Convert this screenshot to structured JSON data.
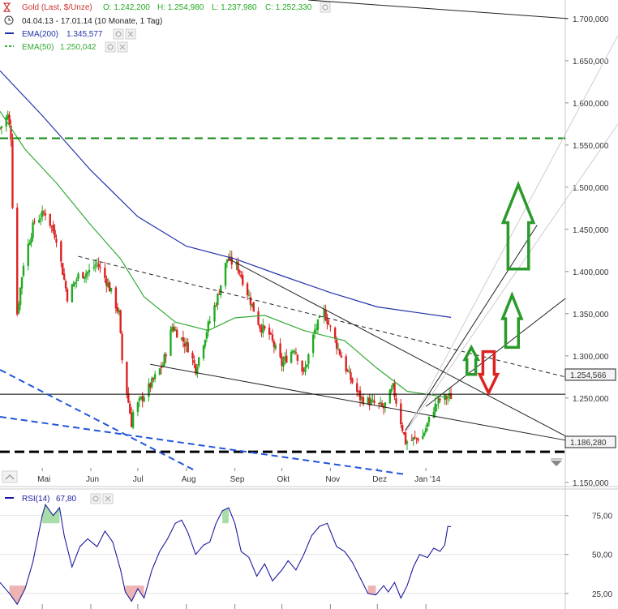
{
  "legend": {
    "instrument": "Gold (Last, $/Unze)",
    "ohlc": {
      "open": "O: 1.242,200",
      "high": "H: 1.254,980",
      "low": "L: 1.237,980",
      "close": "C: 1.252,330"
    },
    "range": "04.04.13 - 17.01.14 (10 Monate, 1 Tag)",
    "ema200": {
      "label": "EMA(200)",
      "value": "1.345,577"
    },
    "ema50": {
      "label": "EMA(50)",
      "value": "1.250,042"
    }
  },
  "rsi": {
    "label": "RSI(14)",
    "value": "67,80"
  },
  "price_tags": {
    "current": "1.254,566",
    "support": "1.186,280"
  },
  "colors": {
    "up": "#22aa22",
    "down": "#dd2222",
    "ema200": "#2233aa",
    "ema50": "#33aa33",
    "rsi": "#1a1aa0",
    "support": "#000000",
    "resistance": "#118811",
    "blue_lines": "#2255dd",
    "arrow_green": "#2a9a2a",
    "arrow_red": "#dd2222"
  },
  "icons": [
    "hourglass-icon",
    "clock-icon",
    "settings-icon",
    "close-icon",
    "chevron-up-icon",
    "chevron-down-icon"
  ],
  "chart_data": [
    {
      "type": "candlestick",
      "title": "",
      "x_labels": [
        "Mai",
        "Jun",
        "Jul",
        "Aug",
        "Sep",
        "Okt",
        "Nov",
        "Dez",
        "Jan '14"
      ],
      "y_ticks": [
        "1.150,000",
        "1.200,000",
        "1.250,000",
        "1.300,000",
        "1.350,000",
        "1.400,000",
        "1.450,000",
        "1.500,000",
        "1.550,000",
        "1.600,000",
        "1.650,000",
        "1.700,000"
      ],
      "ylim": [
        1145,
        1722
      ],
      "x_range": [
        "2013-04-04",
        "2014-03-31"
      ],
      "price_anchors": [
        [
          "2013-04-04",
          1570
        ],
        [
          "2013-04-09",
          1585
        ],
        [
          "2013-04-11",
          1560
        ],
        [
          "2013-04-12",
          1480
        ],
        [
          "2013-04-15",
          1350
        ],
        [
          "2013-04-19",
          1410
        ],
        [
          "2013-04-26",
          1460
        ],
        [
          "2013-05-03",
          1470
        ],
        [
          "2013-05-10",
          1440
        ],
        [
          "2013-05-17",
          1370
        ],
        [
          "2013-05-24",
          1395
        ],
        [
          "2013-05-31",
          1400
        ],
        [
          "2013-06-05",
          1410
        ],
        [
          "2013-06-12",
          1385
        ],
        [
          "2013-06-19",
          1350
        ],
        [
          "2013-06-21",
          1295
        ],
        [
          "2013-06-27",
          1220
        ],
        [
          "2013-06-28",
          1233
        ],
        [
          "2013-07-03",
          1248
        ],
        [
          "2013-07-10",
          1268
        ],
        [
          "2013-07-17",
          1290
        ],
        [
          "2013-07-23",
          1335
        ],
        [
          "2013-08-02",
          1310
        ],
        [
          "2013-08-07",
          1285
        ],
        [
          "2013-08-14",
          1330
        ],
        [
          "2013-08-21",
          1370
        ],
        [
          "2013-08-27",
          1415
        ],
        [
          "2013-09-03",
          1405
        ],
        [
          "2013-09-10",
          1370
        ],
        [
          "2013-09-17",
          1335
        ],
        [
          "2013-09-23",
          1325
        ],
        [
          "2013-10-01",
          1290
        ],
        [
          "2013-10-09",
          1310
        ],
        [
          "2013-10-15",
          1278
        ],
        [
          "2013-10-22",
          1330
        ],
        [
          "2013-10-28",
          1352
        ],
        [
          "2013-11-04",
          1318
        ],
        [
          "2013-11-12",
          1280
        ],
        [
          "2013-11-20",
          1250
        ],
        [
          "2013-11-28",
          1244
        ],
        [
          "2013-12-05",
          1238
        ],
        [
          "2013-12-11",
          1262
        ],
        [
          "2013-12-19",
          1198
        ],
        [
          "2013-12-23",
          1200
        ],
        [
          "2013-12-30",
          1205
        ],
        [
          "2014-01-06",
          1238
        ],
        [
          "2014-01-10",
          1248
        ],
        [
          "2014-01-17",
          1252
        ]
      ],
      "series": [
        {
          "name": "EMA(200)",
          "points": [
            [
              "2013-04-04",
              1638
            ],
            [
              "2013-05-01",
              1585
            ],
            [
              "2013-06-01",
              1520
            ],
            [
              "2013-07-01",
              1465
            ],
            [
              "2013-08-01",
              1430
            ],
            [
              "2013-09-01",
              1415
            ],
            [
              "2013-10-01",
              1395
            ],
            [
              "2013-11-01",
              1375
            ],
            [
              "2013-12-01",
              1358
            ],
            [
              "2014-01-17",
              1345.6
            ]
          ]
        },
        {
          "name": "EMA(50)",
          "points": [
            [
              "2013-04-04",
              1590
            ],
            [
              "2013-04-20",
              1545
            ],
            [
              "2013-05-10",
              1505
            ],
            [
              "2013-06-01",
              1455
            ],
            [
              "2013-06-20",
              1415
            ],
            [
              "2013-07-05",
              1370
            ],
            [
              "2013-07-25",
              1340
            ],
            [
              "2013-08-15",
              1330
            ],
            [
              "2013-09-01",
              1345
            ],
            [
              "2013-09-20",
              1348
            ],
            [
              "2013-10-15",
              1330
            ],
            [
              "2013-11-10",
              1318
            ],
            [
              "2013-12-01",
              1285
            ],
            [
              "2013-12-20",
              1258
            ],
            [
              "2014-01-17",
              1250
            ]
          ]
        }
      ],
      "horizontal_lines": [
        {
          "level": 1558,
          "style": "dashed",
          "color": "#118811"
        },
        {
          "level": 1254.566,
          "style": "solid",
          "color": "#000000",
          "tag": "1.254,566"
        },
        {
          "level": 1186.28,
          "style": "dashed-thick",
          "color": "#000000",
          "tag": "1.186,280"
        }
      ],
      "trend_lines": [
        {
          "from": [
            "2013-08-28",
            1415
          ],
          "to": [
            "2014-03-31",
            1205
          ],
          "style": "solid"
        },
        {
          "from": [
            "2013-07-09",
            1290
          ],
          "to": [
            "2014-03-31",
            1200
          ],
          "style": "solid"
        },
        {
          "from": [
            "2013-05-24",
            1418
          ],
          "to": [
            "2014-03-31",
            1275
          ],
          "style": "dashed"
        },
        {
          "from": [
            "2013-12-19",
            1212
          ],
          "to": [
            "2014-03-13",
            1455
          ],
          "style": "solid"
        },
        {
          "from": [
            "2014-01-01",
            1240
          ],
          "to": [
            "2014-03-31",
            1368
          ],
          "style": "solid"
        }
      ],
      "arrows": [
        {
          "direction": "up",
          "color": "green",
          "x": "2014-03-01",
          "base": 1403,
          "top": 1503
        },
        {
          "direction": "up",
          "color": "green",
          "x": "2014-02-25",
          "base": 1310,
          "top": 1372
        },
        {
          "direction": "up",
          "color": "green",
          "x": "2014-01-30",
          "base": 1278,
          "top": 1310
        },
        {
          "direction": "down",
          "color": "red",
          "x": "2014-02-10",
          "top": 1305,
          "tip": 1256
        }
      ]
    },
    {
      "type": "line",
      "title": "RSI(14)",
      "y_ticks": [
        "25,00",
        "50,00",
        "75,00"
      ],
      "ylim": [
        15,
        92
      ],
      "x_range": [
        "2013-04-04",
        "2014-03-31"
      ],
      "series": [
        {
          "name": "RSI(14)",
          "points": [
            [
              "2013-04-04",
              32
            ],
            [
              "2013-04-10",
              25
            ],
            [
              "2013-04-15",
              18
            ],
            [
              "2013-04-20",
              28
            ],
            [
              "2013-04-25",
              45
            ],
            [
              "2013-05-01",
              75
            ],
            [
              "2013-05-03",
              82
            ],
            [
              "2013-05-08",
              75
            ],
            [
              "2013-05-12",
              80
            ],
            [
              "2013-05-15",
              62
            ],
            [
              "2013-05-20",
              42
            ],
            [
              "2013-05-25",
              55
            ],
            [
              "2013-05-30",
              60
            ],
            [
              "2013-06-05",
              55
            ],
            [
              "2013-06-10",
              65
            ],
            [
              "2013-06-15",
              58
            ],
            [
              "2013-06-20",
              40
            ],
            [
              "2013-06-23",
              26
            ],
            [
              "2013-06-27",
              20
            ],
            [
              "2013-07-01",
              28
            ],
            [
              "2013-07-05",
              22
            ],
            [
              "2013-07-10",
              40
            ],
            [
              "2013-07-15",
              52
            ],
            [
              "2013-07-20",
              60
            ],
            [
              "2013-07-25",
              70
            ],
            [
              "2013-07-29",
              72
            ],
            [
              "2013-08-02",
              64
            ],
            [
              "2013-08-07",
              50
            ],
            [
              "2013-08-12",
              56
            ],
            [
              "2013-08-16",
              58
            ],
            [
              "2013-08-20",
              70
            ],
            [
              "2013-08-24",
              78
            ],
            [
              "2013-08-28",
              80
            ],
            [
              "2013-09-01",
              70
            ],
            [
              "2013-09-05",
              52
            ],
            [
              "2013-09-10",
              48
            ],
            [
              "2013-09-15",
              36
            ],
            [
              "2013-09-20",
              44
            ],
            [
              "2013-09-25",
              33
            ],
            [
              "2013-10-01",
              40
            ],
            [
              "2013-10-05",
              46
            ],
            [
              "2013-10-10",
              40
            ],
            [
              "2013-10-15",
              50
            ],
            [
              "2013-10-20",
              62
            ],
            [
              "2013-10-25",
              68
            ],
            [
              "2013-10-30",
              70
            ],
            [
              "2013-11-05",
              55
            ],
            [
              "2013-11-10",
              52
            ],
            [
              "2013-11-15",
              45
            ],
            [
              "2013-11-20",
              35
            ],
            [
              "2013-11-25",
              25
            ],
            [
              "2013-11-30",
              24
            ],
            [
              "2013-12-05",
              30
            ],
            [
              "2013-12-08",
              26
            ],
            [
              "2013-12-12",
              32
            ],
            [
              "2013-12-16",
              22
            ],
            [
              "2013-12-20",
              30
            ],
            [
              "2013-12-24",
              42
            ],
            [
              "2013-12-28",
              50
            ],
            [
              "2014-01-02",
              48
            ],
            [
              "2014-01-06",
              54
            ],
            [
              "2014-01-10",
              52
            ],
            [
              "2014-01-13",
              56
            ],
            [
              "2014-01-15",
              68
            ],
            [
              "2014-01-17",
              67.8
            ]
          ]
        }
      ]
    }
  ]
}
